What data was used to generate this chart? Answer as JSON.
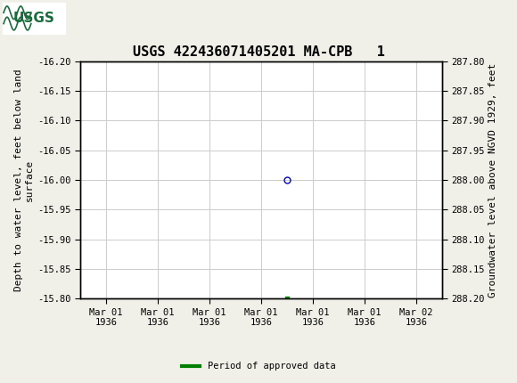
{
  "title": "USGS 422436071405201 MA-CPB   1",
  "ylabel_left": "Depth to water level, feet below land\nsurface",
  "ylabel_right": "Groundwater level above NGVD 1929, feet",
  "ylim_left": [
    -16.2,
    -15.8
  ],
  "ylim_right": [
    287.8,
    288.2
  ],
  "yticks_left": [
    -16.2,
    -16.15,
    -16.1,
    -16.05,
    -16.0,
    -15.95,
    -15.9,
    -15.85,
    -15.8
  ],
  "yticks_right": [
    287.8,
    287.85,
    287.9,
    287.95,
    288.0,
    288.05,
    288.1,
    288.15,
    288.2
  ],
  "data_x": 3.5,
  "data_y": -16.0,
  "marker_color": "#0000cc",
  "line_color": "#008000",
  "legend_label": "Period of approved data",
  "header_color": "#1a6b3c",
  "bg_color": "#f0f0e8",
  "plot_bg_color": "#ffffff",
  "grid_color": "#cccccc",
  "font_family": "monospace",
  "title_fontsize": 11,
  "tick_fontsize": 7.5,
  "label_fontsize": 8,
  "xtick_labels": [
    "Mar 01\n1936",
    "Mar 01\n1936",
    "Mar 01\n1936",
    "Mar 01\n1936",
    "Mar 01\n1936",
    "Mar 01\n1936",
    "Mar 02\n1936"
  ],
  "xtick_positions": [
    0,
    1,
    2,
    3,
    4,
    5,
    6
  ],
  "small_green_marker_x": 3.5,
  "small_green_marker_y": -15.8
}
